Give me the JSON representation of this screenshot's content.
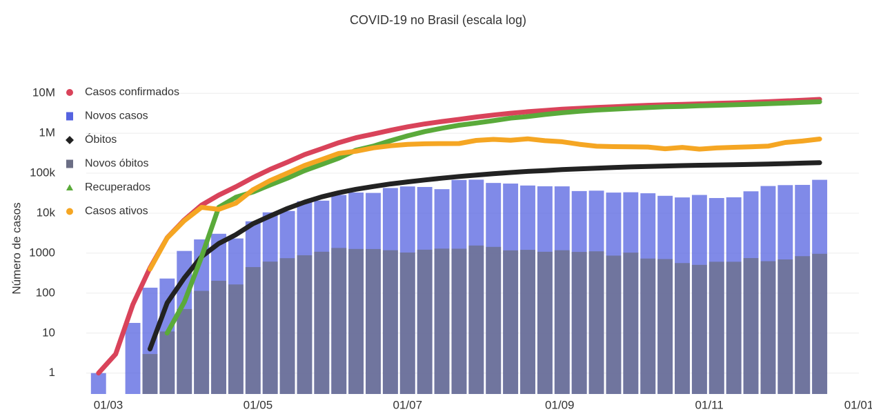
{
  "chart_data": {
    "type": "line",
    "title": "COVID-19 no Brasil (escala log)",
    "y_label": "Número de casos",
    "log_y": true,
    "grid": true,
    "x": [
      "26/02",
      "04/03",
      "11/03",
      "18/03",
      "25/03",
      "01/04",
      "08/04",
      "15/04",
      "22/04",
      "29/04",
      "06/05",
      "13/05",
      "20/05",
      "27/05",
      "03/06",
      "10/06",
      "17/06",
      "24/06",
      "01/07",
      "08/07",
      "15/07",
      "22/07",
      "29/07",
      "05/08",
      "12/08",
      "19/08",
      "26/08",
      "02/09",
      "09/09",
      "16/09",
      "23/09",
      "30/09",
      "07/10",
      "14/10",
      "21/10",
      "28/10",
      "04/11",
      "11/11",
      "18/11",
      "25/11",
      "02/12",
      "09/12",
      "16/12"
    ],
    "xlim": [
      "21/02",
      "01/01"
    ],
    "xticks": [
      "01/03",
      "01/05",
      "01/07",
      "01/09",
      "01/11",
      "01/01"
    ],
    "ylim": [
      0.3,
      15000000
    ],
    "yticks": [
      1,
      10,
      100,
      1000,
      {
        "value": 10000,
        "label": "10k"
      },
      {
        "value": 100000,
        "label": "100k"
      },
      {
        "value": 1000000,
        "label": "1M"
      },
      {
        "value": 10000000,
        "label": "10M"
      }
    ],
    "series": [
      {
        "name": "Casos confirmados",
        "type": "line",
        "marker": "circle",
        "color": "#d9435a",
        "values": [
          1,
          3,
          52,
          428,
          2433,
          6836,
          15927,
          28320,
          45757,
          78162,
          125218,
          188974,
          291579,
          411821,
          584016,
          772416,
          955377,
          1188631,
          1448753,
          1713160,
          1966748,
          2227514,
          2552265,
          2859073,
          3164785,
          3456652,
          3717156,
          3997865,
          4197889,
          4419083,
          4591364,
          4810935,
          5000694,
          5140863,
          5298772,
          5439641,
          5590025,
          5747660,
          5945849,
          6166606,
          6436650,
          6728452,
          7040608
        ]
      },
      {
        "name": "Novos casos",
        "type": "bar",
        "marker": "square",
        "color": "#5563e0",
        "values": [
          1,
          null,
          18,
          137,
          232,
          1138,
          2210,
          3058,
          2336,
          6276,
          10503,
          11385,
          19951,
          20599,
          28633,
          32913,
          32188,
          42725,
          46712,
          45305,
          39924,
          67860,
          69074,
          57152,
          55155,
          49298,
          47161,
          46934,
          35816,
          36653,
          32817,
          33413,
          31553,
          27235,
          24818,
          28629,
          23976,
          25012,
          35294,
          47898,
          50434,
          51088,
          68437
        ]
      },
      {
        "name": "Óbitos",
        "type": "line",
        "marker": "diamond",
        "color": "#222222",
        "values": [
          null,
          null,
          null,
          4,
          57,
          241,
          819,
          1736,
          2906,
          5466,
          8536,
          13149,
          18859,
          25598,
          32548,
          39680,
          46510,
          53830,
          60632,
          67964,
          75366,
          82771,
          90134,
          97256,
          104201,
          111100,
          116580,
          123780,
          128539,
          134106,
          138977,
          143952,
          148228,
          151747,
          155403,
          158456,
          161106,
          163368,
          166699,
          170115,
          174515,
          178995,
          183735
        ]
      },
      {
        "name": "Novos óbitos",
        "type": "bar",
        "marker": "square",
        "color": "#6b6e85",
        "values": [
          null,
          null,
          null,
          3,
          11,
          40,
          114,
          204,
          165,
          449,
          615,
          749,
          888,
          1086,
          1349,
          1274,
          1269,
          1185,
          1038,
          1223,
          1300,
          1293,
          1554,
          1437,
          1175,
          1212,
          1085,
          1184,
          1075,
          1113,
          869,
          1031,
          734,
          713,
          566,
          510,
          610,
          610,
          754,
          630,
          697,
          842,
          964
        ]
      },
      {
        "name": "Recuperados",
        "type": "line",
        "marker": "triangle",
        "color": "#5aaa3a",
        "values": [
          null,
          null,
          null,
          null,
          10,
          60,
          800,
          14000,
          25000,
          34000,
          51000,
          75000,
          116000,
          166000,
          238000,
          378000,
          477000,
          650000,
          860000,
          1100000,
          1340000,
          1590000,
          1800000,
          2060000,
          2390000,
          2620000,
          2950000,
          3260000,
          3540000,
          3810000,
          3990000,
          4210000,
          4400000,
          4580000,
          4700000,
          4880000,
          5000000,
          5140000,
          5320000,
          5520000,
          5690000,
          5910000,
          6140000
        ]
      },
      {
        "name": "Casos ativos",
        "type": "line",
        "marker": "circle",
        "color": "#f5a623",
        "values": [
          null,
          null,
          null,
          400,
          2400,
          6500,
          14000,
          12500,
          17800,
          38700,
          65700,
          100800,
          156700,
          220200,
          313500,
          354700,
          431900,
          484800,
          528100,
          545200,
          551400,
          554700,
          662100,
          701800,
          670600,
          725500,
          650600,
          614100,
          529400,
          475000,
          462400,
          457000,
          452500,
          409100,
          443400,
          401200,
          428900,
          444300,
          459100,
          476500,
          587100,
          639500,
          716900
        ]
      }
    ]
  }
}
